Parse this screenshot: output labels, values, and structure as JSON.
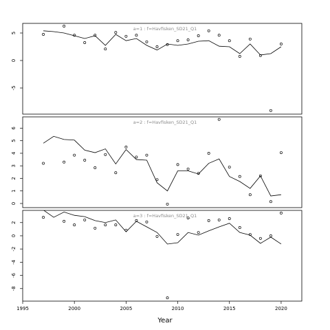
{
  "chart_data": [
    {
      "type": "line",
      "title": "a=1 : f=Havfisken_SD21_Q1",
      "x": [
        1997,
        1998,
        1999,
        2000,
        2001,
        2002,
        2003,
        2004,
        2005,
        2006,
        2007,
        2008,
        2009,
        2010,
        2011,
        2012,
        2013,
        2014,
        2015,
        2016,
        2017,
        2018,
        2019,
        2020
      ],
      "xlim": [
        1995,
        2022
      ],
      "ylim": [
        -9.75,
        6.75
      ],
      "yticks": [
        -5,
        0,
        5
      ],
      "series": [
        {
          "style": "points",
          "color": "#000000",
          "values": [
            4.75,
            null,
            6.25,
            4.6,
            3.25,
            4.6,
            2.1,
            5.1,
            4.4,
            4.6,
            3.4,
            2.5,
            2.9,
            3.6,
            3.75,
            4.5,
            5.4,
            4.6,
            3.6,
            0.75,
            3.9,
            0.9,
            -9.1,
            3.0
          ]
        },
        {
          "style": "line",
          "color": "#000000",
          "values": [
            5.4,
            5.25,
            5.0,
            4.5,
            4.0,
            4.5,
            2.75,
            4.75,
            3.6,
            4.0,
            2.75,
            1.9,
            3.0,
            2.75,
            3.0,
            3.5,
            3.6,
            2.6,
            2.5,
            1.25,
            3.0,
            1.0,
            1.25,
            2.5
          ]
        }
      ]
    },
    {
      "type": "line",
      "title": "a=2 : f=Havfisken_SD21_Q1",
      "x": [
        1997,
        1998,
        1999,
        2000,
        2001,
        2002,
        2003,
        2004,
        2005,
        2006,
        2007,
        2008,
        2009,
        2010,
        2011,
        2012,
        2013,
        2014,
        2015,
        2016,
        2017,
        2018,
        2019,
        2020
      ],
      "xlim": [
        1995,
        2022
      ],
      "ylim": [
        -0.33,
        6.9
      ],
      "yticks": [
        0,
        1,
        2,
        3,
        4,
        5,
        6
      ],
      "series": [
        {
          "style": "points",
          "color": "#000000",
          "values": [
            3.2,
            null,
            3.3,
            3.85,
            3.45,
            2.85,
            3.9,
            2.45,
            4.5,
            3.7,
            3.85,
            1.9,
            -0.05,
            3.1,
            2.75,
            2.4,
            4.0,
            6.7,
            2.9,
            2.15,
            0.7,
            2.2,
            0.15,
            4.05
          ]
        },
        {
          "style": "line",
          "color": "#000000",
          "values": [
            4.8,
            5.35,
            5.1,
            5.05,
            4.25,
            4.05,
            4.35,
            3.15,
            4.3,
            3.5,
            3.45,
            1.65,
            1.0,
            2.6,
            2.6,
            2.35,
            3.2,
            3.55,
            2.15,
            1.75,
            1.2,
            2.2,
            0.6,
            0.7
          ]
        }
      ]
    },
    {
      "type": "line",
      "title": "a=3 : f=Havfisken_SD21_Q1",
      "xlabel": "Year",
      "x": [
        1997,
        1998,
        1999,
        2000,
        2001,
        2002,
        2003,
        2004,
        2005,
        2006,
        2007,
        2008,
        2009,
        2010,
        2011,
        2012,
        2013,
        2014,
        2015,
        2016,
        2017,
        2018,
        2019,
        2020
      ],
      "xlim": [
        1995,
        2022
      ],
      "xticks": [
        1995,
        2000,
        2005,
        2010,
        2015,
        2020
      ],
      "ylim": [
        -9.9,
        3.85
      ],
      "yticks": [
        -8,
        -6,
        -4,
        -2,
        0,
        2
      ],
      "series": [
        {
          "style": "points",
          "color": "#000000",
          "values": [
            2.8,
            null,
            2.2,
            1.65,
            2.4,
            1.15,
            1.65,
            1.65,
            0.85,
            2.3,
            2.1,
            -0.1,
            -9.4,
            0.2,
            2.7,
            0.5,
            2.3,
            2.4,
            2.6,
            1.25,
            0.2,
            -0.4,
            0,
            3.45
          ]
        },
        {
          "style": "line",
          "color": "#000000",
          "values": [
            3.9,
            2.8,
            3.6,
            3.1,
            2.9,
            2.3,
            2.0,
            2.4,
            0.6,
            2.2,
            1.35,
            0.5,
            -1.25,
            -1.05,
            0.5,
            0.1,
            0.75,
            1.35,
            1.9,
            0.5,
            0.1,
            -1.15,
            -0.2,
            -1.25
          ]
        }
      ]
    }
  ]
}
